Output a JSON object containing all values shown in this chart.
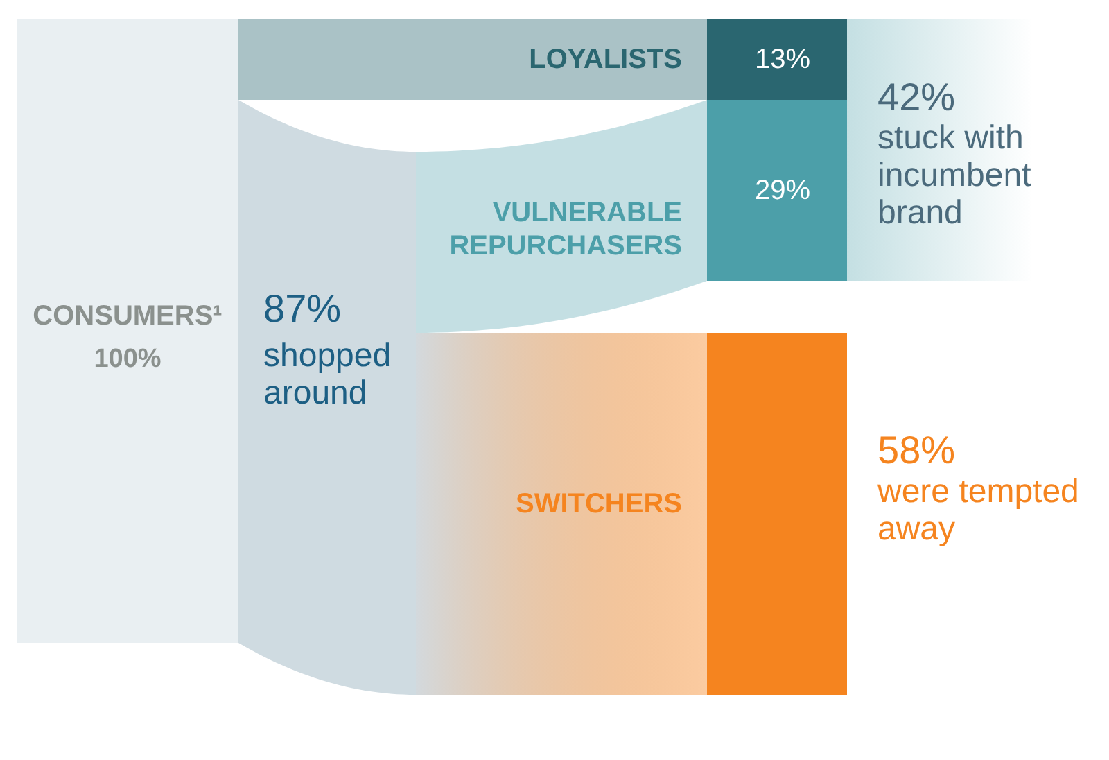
{
  "chart_data": {
    "type": "other",
    "categories": [
      "CONSUMERS¹",
      "LOYALISTS",
      "VULNERABLE REPURCHASERS",
      "SWITCHERS"
    ],
    "values": [
      100,
      13,
      29,
      58
    ],
    "colors": [
      "#e9eff2",
      "#2a6670",
      "#4c9fa9",
      "#f5841f"
    ],
    "value_labels": [
      "100%",
      "13%",
      "29%",
      "58%"
    ],
    "annotations": [
      "87% shopped around",
      "42% stuck with incumbent brand",
      "were tempted away"
    ]
  }
}
